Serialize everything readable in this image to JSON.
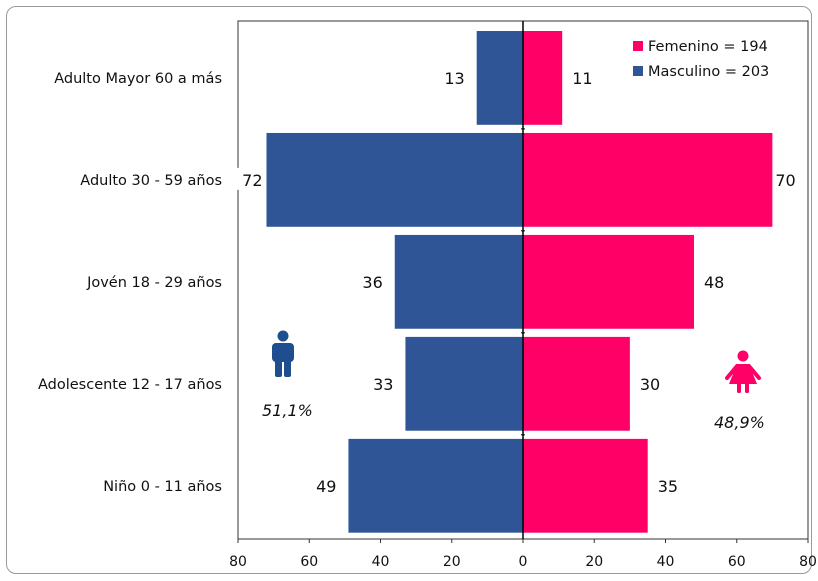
{
  "chart_data": {
    "type": "bar",
    "orientation": "horizontal-population-pyramid",
    "categories": [
      "Adulto Mayor 60 a más",
      "Adulto 30 - 59 años",
      "Jovén 18 - 29 años",
      "Adolescente 12 - 17 años",
      "Niño 0 - 11 años"
    ],
    "series": [
      {
        "name": "Masculino = 203",
        "values": [
          13,
          72,
          36,
          33,
          49
        ],
        "color": "#2f5597",
        "side": "left"
      },
      {
        "name": "Femenino = 194",
        "values": [
          11,
          70,
          48,
          30,
          35
        ],
        "color": "#ff0066",
        "side": "right"
      }
    ],
    "xticks": [
      "80",
      "60",
      "40",
      "20",
      "0",
      "20",
      "40",
      "60",
      "80"
    ],
    "xlim": [
      -80,
      80
    ],
    "legend_position": "top-right",
    "grid": false,
    "annotations": {
      "male_percent": "51,1%",
      "female_percent": "48,9%",
      "male_icon": "male-person-icon",
      "female_icon": "female-person-icon"
    }
  }
}
